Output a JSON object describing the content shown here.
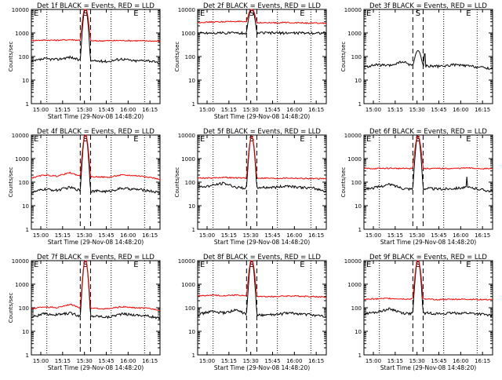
{
  "figure": {
    "background": "#ffffff",
    "colors": {
      "events": "#000000",
      "lld": "#ff0000",
      "axis": "#000000"
    }
  },
  "chart_data": [
    {
      "type": "line",
      "title": "Det 1f BLACK = Events, RED = LLD",
      "xlabel": "Start Time (29-Nov-08 14:48:20)",
      "ylabel": "Counts/sec",
      "y_scale": "log",
      "ylim": [
        1,
        10000
      ],
      "y_ticks": [
        "1",
        "10",
        "100",
        "1000",
        "10000"
      ],
      "x_ticks": [
        "15:00",
        "15:15",
        "15:30",
        "15:45",
        "16:00",
        "16:15"
      ],
      "markers": [
        "E",
        "S",
        "E"
      ],
      "events_base": 60,
      "lld_base": 480,
      "peak": 12000,
      "lld_peak": 12000,
      "spikes": [],
      "series": [
        {
          "name": "Events",
          "color": "#000000",
          "values": [
            60,
            80,
            75,
            95,
            60,
            65,
            62,
            80,
            65,
            70,
            50
          ]
        },
        {
          "name": "LLD",
          "color": "#ff0000",
          "values": [
            480,
            500,
            490,
            520,
            480,
            460,
            470,
            480,
            470,
            460,
            450
          ]
        }
      ]
    },
    {
      "type": "line",
      "title": "Det 2f BLACK = Events, RED = LLD",
      "xlabel": "Start Time (29-Nov-08 14:48:20)",
      "ylabel": "Counts/sec",
      "y_scale": "log",
      "ylim": [
        1,
        10000
      ],
      "y_ticks": [
        "1",
        "10",
        "100",
        "1000",
        "10000"
      ],
      "x_ticks": [
        "15:00",
        "15:15",
        "15:30",
        "15:45",
        "16:00",
        "16:15"
      ],
      "markers": [
        "E",
        "S",
        "E"
      ],
      "events_base": 1000,
      "lld_base": 2800,
      "peak": 11000,
      "lld_peak": 11000,
      "spikes": [],
      "series": [
        {
          "name": "Events",
          "color": "#000000",
          "values": [
            1000,
            1000,
            1000,
            1000,
            1000,
            1000,
            1000,
            1000,
            1000,
            1000,
            1000
          ]
        },
        {
          "name": "LLD",
          "color": "#ff0000",
          "values": [
            2800,
            2900,
            3000,
            3100,
            2800,
            2700,
            2700,
            2800,
            2700,
            2600,
            2600
          ]
        }
      ]
    },
    {
      "type": "line",
      "title": "Det 3f BLACK = Events, RED = LLD",
      "xlabel": "",
      "ylabel": "Counts/sec",
      "y_scale": "log",
      "ylim": [
        1,
        10000
      ],
      "y_ticks": [
        "1",
        "10",
        "100",
        "1000",
        "10000"
      ],
      "x_ticks": [
        "15:00",
        "15:15",
        "15:30",
        "15:45",
        "16:00",
        "16:15"
      ],
      "markers": [
        "E",
        "S",
        "E"
      ],
      "events_base": 35,
      "lld_base": null,
      "peak": 180,
      "lld_peak": null,
      "spikes": [
        [
          0.47,
          130
        ]
      ],
      "series": [
        {
          "name": "Events",
          "color": "#000000",
          "values": [
            35,
            45,
            40,
            60,
            35,
            40,
            38,
            45,
            40,
            35,
            30
          ]
        }
      ]
    },
    {
      "type": "line",
      "title": "Det 4f BLACK = Events, RED = LLD",
      "xlabel": "Start Time (29-Nov-08 14:48:20)",
      "ylabel": "Counts/sec",
      "y_scale": "log",
      "ylim": [
        1,
        10000
      ],
      "y_ticks": [
        "1",
        "10",
        "100",
        "1000",
        "10000"
      ],
      "x_ticks": [
        "15:00",
        "15:15",
        "15:30",
        "15:45",
        "16:00",
        "16:15"
      ],
      "markers": [
        "E",
        "S",
        "E"
      ],
      "events_base": 35,
      "lld_base": 150,
      "peak": 11000,
      "lld_peak": 11000,
      "spikes": [],
      "series": [
        {
          "name": "Events",
          "color": "#000000",
          "values": [
            35,
            50,
            45,
            60,
            40,
            42,
            40,
            55,
            50,
            45,
            35
          ]
        },
        {
          "name": "LLD",
          "color": "#ff0000",
          "values": [
            150,
            200,
            180,
            250,
            160,
            170,
            160,
            200,
            190,
            170,
            130
          ]
        }
      ]
    },
    {
      "type": "line",
      "title": "Det 5f BLACK = Events, RED = LLD",
      "xlabel": "Start Time (29-Nov-08 14:48:20)",
      "ylabel": "Counts/sec",
      "y_scale": "log",
      "ylim": [
        1,
        10000
      ],
      "y_ticks": [
        "1",
        "10",
        "100",
        "1000",
        "10000"
      ],
      "x_ticks": [
        "15:00",
        "15:15",
        "15:30",
        "15:45",
        "16:00",
        "16:15"
      ],
      "markers": [
        "E",
        "S",
        "E"
      ],
      "events_base": 60,
      "lld_base": 150,
      "peak": 9000,
      "lld_peak": 9000,
      "spikes": [],
      "series": [
        {
          "name": "Events",
          "color": "#000000",
          "values": [
            60,
            70,
            90,
            60,
            55,
            60,
            60,
            70,
            60,
            55,
            40
          ]
        },
        {
          "name": "LLD",
          "color": "#ff0000",
          "values": [
            150,
            150,
            160,
            150,
            150,
            150,
            145,
            150,
            145,
            140,
            140
          ]
        }
      ]
    },
    {
      "type": "line",
      "title": "Det 6f BLACK = Events, RED = LLD",
      "xlabel": "Start Time (29-Nov-08 14:48:20)",
      "ylabel": "Counts/sec",
      "y_scale": "log",
      "ylim": [
        1,
        10000
      ],
      "y_ticks": [
        "1",
        "10",
        "100",
        "1000",
        "10000"
      ],
      "x_ticks": [
        "15:00",
        "15:15",
        "15:30",
        "15:45",
        "16:00",
        "16:15"
      ],
      "markers": [
        "E",
        "S",
        "E"
      ],
      "events_base": 50,
      "lld_base": 380,
      "peak": 9000,
      "lld_peak": 9000,
      "spikes": [
        [
          0.8,
          170
        ]
      ],
      "series": [
        {
          "name": "Events",
          "color": "#000000",
          "values": [
            50,
            60,
            80,
            55,
            50,
            55,
            50,
            55,
            60,
            50,
            40
          ]
        },
        {
          "name": "LLD",
          "color": "#ff0000",
          "values": [
            380,
            380,
            390,
            380,
            380,
            380,
            380,
            380,
            400,
            380,
            370
          ]
        }
      ]
    },
    {
      "type": "line",
      "title": "Det 7f BLACK = Events, RED = LLD",
      "xlabel": "Start Time (29-Nov-08 14:48:20)",
      "ylabel": "Counts/sec",
      "y_scale": "log",
      "ylim": [
        1,
        10000
      ],
      "y_ticks": [
        "1",
        "10",
        "100",
        "1000",
        "10000"
      ],
      "x_ticks": [
        "15:00",
        "15:15",
        "15:30",
        "15:45",
        "16:00",
        "16:15"
      ],
      "markers": [
        "E",
        "S",
        "E"
      ],
      "events_base": 40,
      "lld_base": 90,
      "peak": 11000,
      "lld_peak": 11000,
      "spikes": [],
      "series": [
        {
          "name": "Events",
          "color": "#000000",
          "values": [
            40,
            55,
            50,
            60,
            40,
            45,
            40,
            55,
            50,
            45,
            35
          ]
        },
        {
          "name": "LLD",
          "color": "#ff0000",
          "values": [
            90,
            110,
            100,
            140,
            90,
            95,
            90,
            110,
            100,
            95,
            80
          ]
        }
      ]
    },
    {
      "type": "line",
      "title": "Det 8f BLACK = Events, RED = LLD",
      "xlabel": "Start Time (29-Nov-08 14:48:20)",
      "ylabel": "",
      "y_scale": "log",
      "ylim": [
        1,
        10000
      ],
      "y_ticks": [
        "1",
        "10",
        "100",
        "1000",
        "10000"
      ],
      "x_ticks": [
        "15:00",
        "15:15",
        "15:30",
        "15:45",
        "16:00",
        "16:15"
      ],
      "markers": [
        "E",
        "S",
        "E"
      ],
      "events_base": 50,
      "lld_base": 320,
      "peak": 11000,
      "lld_peak": 11000,
      "spikes": [
        [
          0.45,
          150
        ]
      ],
      "series": [
        {
          "name": "Events",
          "color": "#000000",
          "values": [
            50,
            70,
            60,
            80,
            45,
            50,
            50,
            60,
            55,
            50,
            40
          ]
        },
        {
          "name": "LLD",
          "color": "#ff0000",
          "values": [
            320,
            340,
            330,
            350,
            310,
            300,
            300,
            320,
            310,
            300,
            280
          ]
        }
      ]
    },
    {
      "type": "line",
      "title": "Det 9f BLACK = Events, RED = LLD",
      "xlabel": "Start Time (29-Nov-08 14:48:20)",
      "ylabel": "",
      "y_scale": "log",
      "ylim": [
        1,
        10000
      ],
      "y_ticks": [
        "1",
        "10",
        "100",
        "1000",
        "10000"
      ],
      "x_ticks": [
        "15:00",
        "15:15",
        "15:30",
        "15:45",
        "16:00",
        "16:15"
      ],
      "markers": [
        "E",
        "S",
        "E"
      ],
      "events_base": 55,
      "lld_base": 230,
      "peak": 11000,
      "lld_peak": 11000,
      "spikes": [],
      "series": [
        {
          "name": "Events",
          "color": "#000000",
          "values": [
            55,
            65,
            90,
            60,
            55,
            60,
            55,
            60,
            60,
            55,
            45
          ]
        },
        {
          "name": "LLD",
          "color": "#ff0000",
          "values": [
            230,
            240,
            250,
            240,
            230,
            230,
            225,
            230,
            230,
            225,
            220
          ]
        }
      ]
    }
  ]
}
